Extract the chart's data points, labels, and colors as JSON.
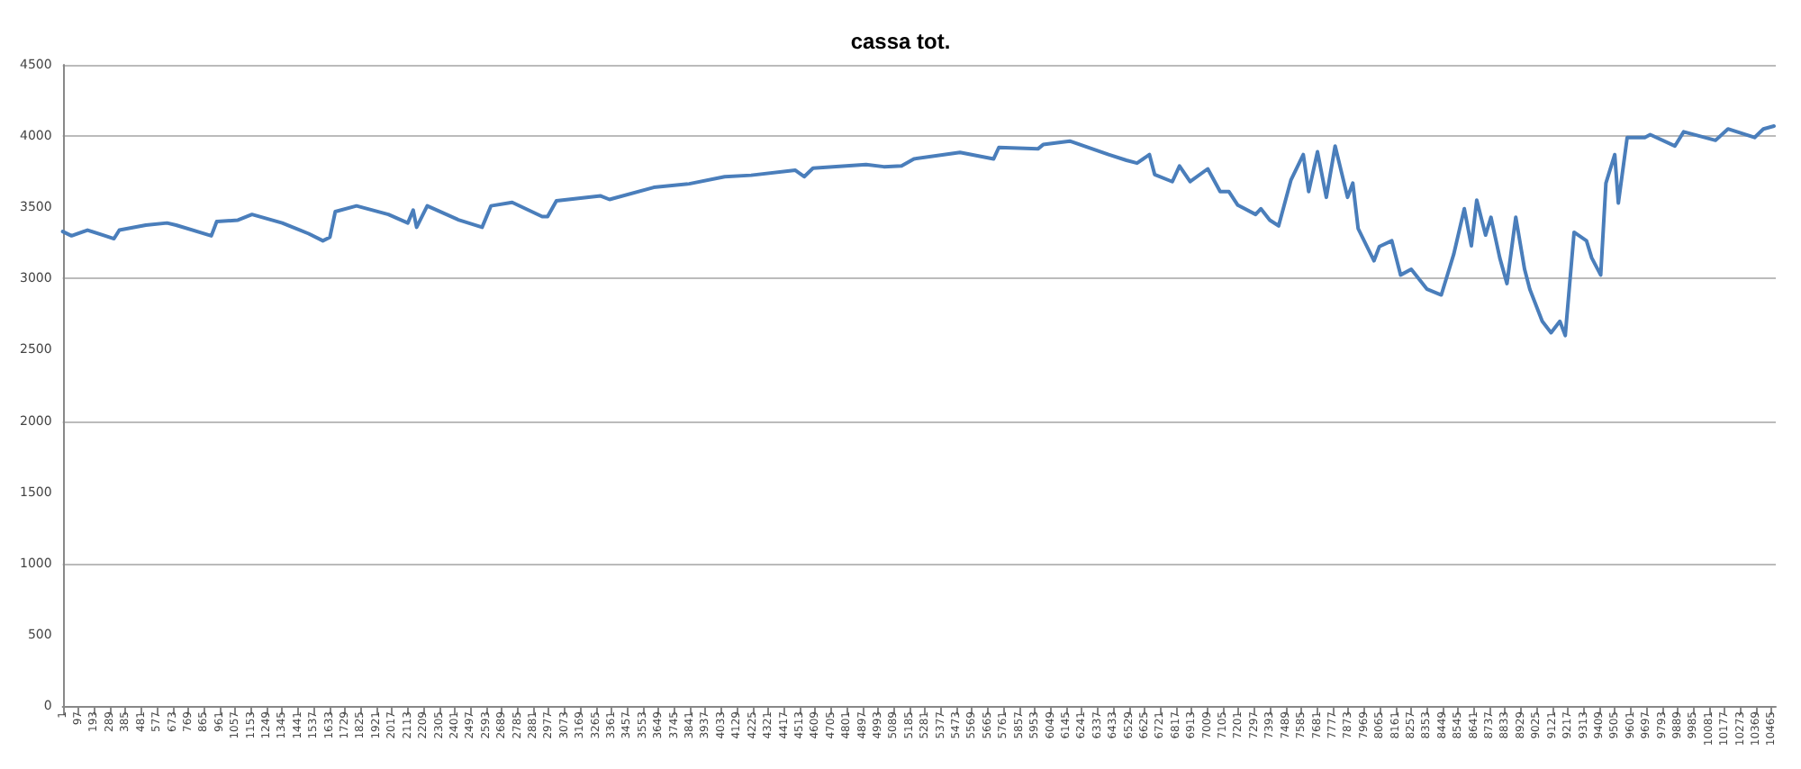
{
  "chart_data": {
    "type": "line",
    "title": "cassa tot.",
    "grid": "y",
    "marker": "none",
    "line_style": "solid",
    "xlim": [
      1,
      10490
    ],
    "ylim": [
      0,
      4500
    ],
    "yticks": [
      0,
      500,
      1000,
      1500,
      2000,
      2500,
      3000,
      3500,
      4000,
      4500
    ],
    "xticks": [
      1,
      97,
      193,
      289,
      385,
      481,
      577,
      673,
      769,
      865,
      961,
      1057,
      1153,
      1249,
      1345,
      1441,
      1537,
      1633,
      1729,
      1825,
      1921,
      2017,
      2113,
      2209,
      2305,
      2401,
      2497,
      2593,
      2689,
      2785,
      2881,
      2977,
      3073,
      3169,
      3265,
      3361,
      3457,
      3553,
      3649,
      3745,
      3841,
      3937,
      4033,
      4129,
      4225,
      4321,
      4417,
      4513,
      4609,
      4705,
      4801,
      4897,
      4993,
      5089,
      5185,
      5281,
      5377,
      5473,
      5569,
      5665,
      5761,
      5857,
      5953,
      6049,
      6145,
      6241,
      6337,
      6433,
      6529,
      6625,
      6721,
      6817,
      6913,
      7009,
      7105,
      7201,
      7297,
      7393,
      7489,
      7585,
      7681,
      7777,
      7873,
      7969,
      8065,
      8161,
      8257,
      8353,
      8449,
      8545,
      8641,
      8737,
      8833,
      8929,
      9025,
      9121,
      9217,
      9313,
      9409,
      9505,
      9601,
      9697,
      9793,
      9889,
      9985,
      10081,
      10177,
      10273,
      10369,
      10465
    ],
    "series": [
      {
        "color": "#4a7ebb",
        "x": [
          1,
          55,
          153,
          261,
          315,
          348,
          510,
          640,
          695,
          911,
          944,
          1074,
          1160,
          1345,
          1507,
          1594,
          1637,
          1670,
          1800,
          1995,
          2114,
          2147,
          2168,
          2233,
          2428,
          2569,
          2623,
          2753,
          2937,
          2970,
          3024,
          3295,
          3349,
          3620,
          3837,
          4054,
          4216,
          4487,
          4541,
          4595,
          4920,
          5029,
          5137,
          5213,
          5495,
          5701,
          5733,
          5972,
          6004,
          6167,
          6405,
          6514,
          6579,
          6655,
          6687,
          6795,
          6839,
          6904,
          7012,
          7088,
          7142,
          7196,
          7305,
          7337,
          7392,
          7446,
          7521,
          7597,
          7630,
          7684,
          7738,
          7792,
          7868,
          7900,
          7933,
          8030,
          8063,
          8139,
          8193,
          8258,
          8355,
          8442,
          8518,
          8583,
          8626,
          8659,
          8713,
          8746,
          8800,
          8844,
          8898,
          8952,
          8984,
          9060,
          9114,
          9168,
          9201,
          9255,
          9331,
          9363,
          9418,
          9450,
          9504,
          9526,
          9580,
          9688,
          9721,
          9872,
          9926,
          10121,
          10197,
          10360,
          10414,
          10479
        ],
        "values": [
          3330,
          3300,
          3340,
          3300,
          3280,
          3340,
          3375,
          3390,
          3375,
          3300,
          3400,
          3410,
          3450,
          3390,
          3315,
          3265,
          3290,
          3470,
          3510,
          3450,
          3390,
          3480,
          3360,
          3510,
          3410,
          3360,
          3510,
          3535,
          3435,
          3435,
          3545,
          3580,
          3555,
          3640,
          3665,
          3715,
          3725,
          3760,
          3715,
          3775,
          3800,
          3785,
          3790,
          3840,
          3885,
          3840,
          3920,
          3910,
          3940,
          3965,
          3870,
          3830,
          3810,
          3870,
          3730,
          3680,
          3790,
          3680,
          3770,
          3610,
          3610,
          3515,
          3450,
          3490,
          3410,
          3370,
          3690,
          3870,
          3610,
          3890,
          3570,
          3930,
          3570,
          3670,
          3350,
          3125,
          3225,
          3265,
          3025,
          3065,
          2925,
          2885,
          3170,
          3490,
          3230,
          3550,
          3305,
          3430,
          3145,
          2965,
          3430,
          3065,
          2925,
          2700,
          2620,
          2700,
          2600,
          3325,
          3265,
          3145,
          3025,
          3670,
          3870,
          3530,
          3990,
          3990,
          4010,
          3930,
          4030,
          3970,
          4050,
          3990,
          4050,
          4070
        ]
      }
    ]
  }
}
